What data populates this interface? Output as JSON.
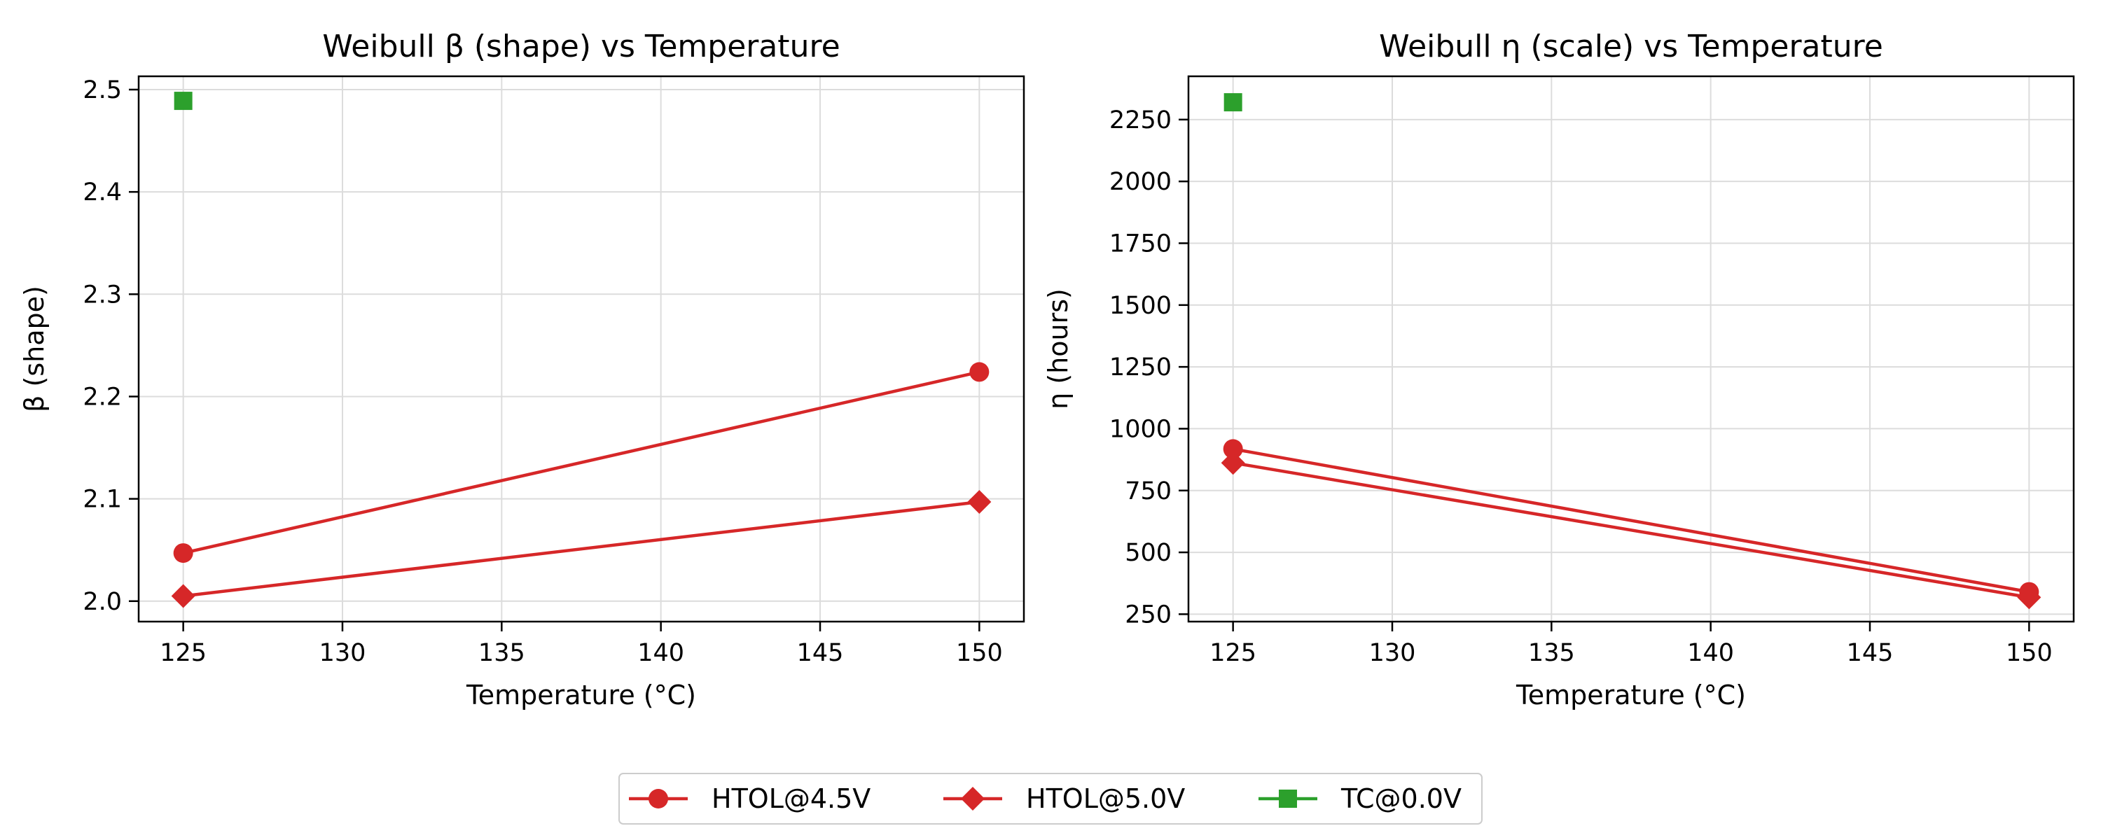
{
  "chart_data": [
    {
      "type": "line",
      "title": "Weibull β (shape) vs Temperature",
      "xlabel": "Temperature (°C)",
      "ylabel": "β (shape)",
      "xlim": [
        123.6,
        151.4
      ],
      "ylim": [
        1.98,
        2.513
      ],
      "xticks": [
        125,
        130,
        135,
        140,
        145,
        150
      ],
      "yticks": [
        2.0,
        2.1,
        2.2,
        2.3,
        2.4,
        2.5
      ],
      "ytick_labels": [
        "2.0",
        "2.1",
        "2.2",
        "2.3",
        "2.4",
        "2.5"
      ],
      "grid": true,
      "series": [
        {
          "name": "HTOL@4.5V",
          "color": "#d62728",
          "marker": "circle",
          "x": [
            125,
            150
          ],
          "y": [
            2.047,
            2.224
          ]
        },
        {
          "name": "HTOL@5.0V",
          "color": "#d62728",
          "marker": "diamond",
          "x": [
            125,
            150
          ],
          "y": [
            2.005,
            2.097
          ]
        },
        {
          "name": "TC@0.0V",
          "color": "#2ca02c",
          "marker": "square",
          "x": [
            125
          ],
          "y": [
            2.489
          ]
        }
      ]
    },
    {
      "type": "line",
      "title": "Weibull η (scale) vs Temperature",
      "xlabel": "Temperature (°C)",
      "ylabel": "η (hours)",
      "xlim": [
        123.6,
        151.4
      ],
      "ylim": [
        220,
        2425
      ],
      "xticks": [
        125,
        130,
        135,
        140,
        145,
        150
      ],
      "yticks": [
        250,
        500,
        750,
        1000,
        1250,
        1500,
        1750,
        2000,
        2250
      ],
      "ytick_labels": [
        "250",
        "500",
        "750",
        "1000",
        "1250",
        "1500",
        "1750",
        "2000",
        "2250"
      ],
      "grid": true,
      "series": [
        {
          "name": "HTOL@4.5V",
          "color": "#d62728",
          "marker": "circle",
          "x": [
            125,
            150
          ],
          "y": [
            918,
            340
          ]
        },
        {
          "name": "HTOL@5.0V",
          "color": "#d62728",
          "marker": "diamond",
          "x": [
            125,
            150
          ],
          "y": [
            862,
            318
          ]
        },
        {
          "name": "TC@0.0V",
          "color": "#2ca02c",
          "marker": "square",
          "x": [
            125
          ],
          "y": [
            2320
          ]
        }
      ]
    }
  ],
  "legend": {
    "placement": "bottom-center",
    "entries": [
      {
        "label": "HTOL@4.5V",
        "color": "#d62728",
        "marker": "circle"
      },
      {
        "label": "HTOL@5.0V",
        "color": "#d62728",
        "marker": "diamond"
      },
      {
        "label": "TC@0.0V",
        "color": "#2ca02c",
        "marker": "square"
      }
    ]
  }
}
